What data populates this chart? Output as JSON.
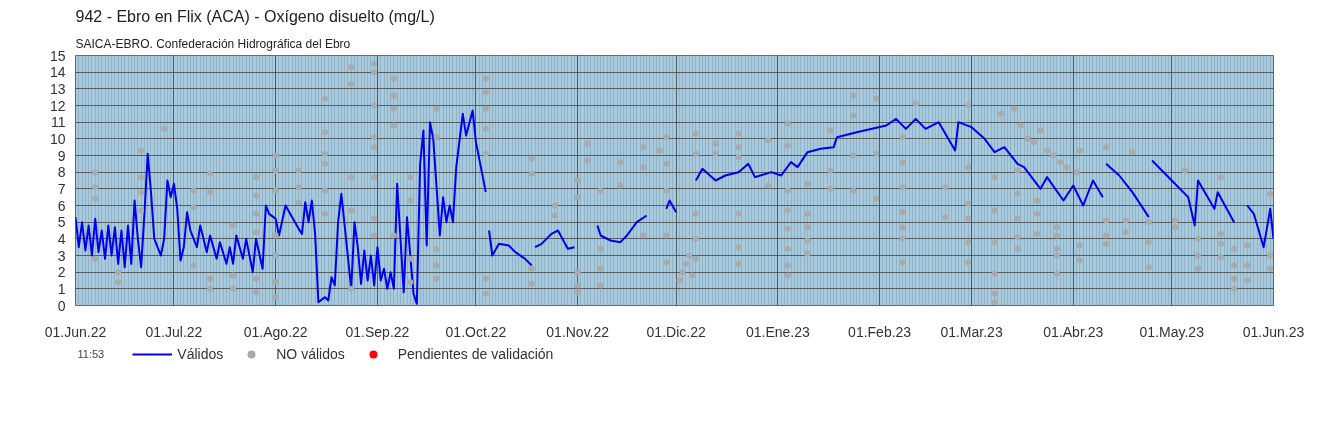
{
  "chart_data": {
    "type": "line",
    "title": "942 - Ebro en Flix (ACA) - Oxígeno disuelto (mg/L)",
    "subtitle": "SAICA-EBRO. Confederación Hidrográfica del Ebro",
    "annotations": [
      "11:53"
    ],
    "xlim": [
      "2022-06-01",
      "2023-06-01"
    ],
    "xticks": [
      {
        "value": "2022-06-01",
        "label": "01.Jun.22"
      },
      {
        "value": "2022-07-01",
        "label": "01.Jul.22"
      },
      {
        "value": "2022-08-01",
        "label": "01.Ago.22"
      },
      {
        "value": "2022-09-01",
        "label": "01.Sep.22"
      },
      {
        "value": "2022-10-01",
        "label": "01.Oct.22"
      },
      {
        "value": "2022-11-01",
        "label": "01.Nov.22"
      },
      {
        "value": "2022-12-01",
        "label": "01.Dic.22"
      },
      {
        "value": "2023-01-01",
        "label": "01.Ene.23"
      },
      {
        "value": "2023-02-01",
        "label": "01.Feb.23"
      },
      {
        "value": "2023-03-01",
        "label": "01.Mar.23"
      },
      {
        "value": "2023-04-01",
        "label": "01.Abr.23"
      },
      {
        "value": "2023-05-01",
        "label": "01.May.23"
      },
      {
        "value": "2023-06-01",
        "label": "01.Jun.23"
      }
    ],
    "ylim": [
      0,
      15
    ],
    "yticks": [
      0,
      1,
      2,
      3,
      4,
      5,
      6,
      7,
      8,
      9,
      10,
      11,
      12,
      13,
      14,
      15
    ],
    "grid": true,
    "legend": "bottom",
    "line_style": "solid",
    "series": [
      {
        "name": "Válidos",
        "color": "#0000ee",
        "x": [
          "2022-06-01",
          "2022-06-02",
          "2022-06-03",
          "2022-06-04",
          "2022-06-05",
          "2022-06-06",
          "2022-06-07",
          "2022-06-08",
          "2022-06-09",
          "2022-06-10",
          "2022-06-11",
          "2022-06-12",
          "2022-06-13",
          "2022-06-14",
          "2022-06-15",
          "2022-06-16",
          "2022-06-17",
          "2022-06-18",
          "2022-06-19",
          "2022-06-20",
          "2022-06-21",
          "2022-06-22",
          "2022-06-23",
          "2022-06-24",
          "2022-06-25",
          "2022-06-26",
          "2022-06-27",
          "2022-06-28",
          "2022-06-29",
          "2022-06-30",
          "2022-07-01",
          "2022-07-02",
          "2022-07-03",
          "2022-07-04",
          "2022-07-05",
          "2022-07-06",
          "2022-07-08",
          "2022-07-09",
          "2022-07-11",
          "2022-07-12",
          "2022-07-14",
          "2022-07-15",
          "2022-07-17",
          "2022-07-18",
          "2022-07-19",
          "2022-07-20",
          "2022-07-22",
          "2022-07-23",
          "2022-07-25",
          "2022-07-26",
          "2022-07-28",
          "2022-07-29",
          "2022-07-30",
          "2022-08-01",
          "2022-08-02",
          "2022-08-04",
          "2022-08-06",
          "2022-08-08",
          "2022-08-09",
          "2022-08-10",
          "2022-08-11",
          "2022-08-12",
          "2022-08-13",
          "2022-08-14",
          "2022-08-16",
          "2022-08-17",
          "2022-08-18",
          "2022-08-19",
          "2022-08-20",
          "2022-08-21",
          "2022-08-22",
          "2022-08-24",
          "2022-08-25",
          "2022-08-26",
          "2022-08-27",
          "2022-08-28",
          "2022-08-29",
          "2022-08-30",
          "2022-08-31",
          "2022-09-01",
          "2022-09-02",
          "2022-09-03",
          "2022-09-04",
          "2022-09-05",
          "2022-09-06",
          "2022-09-07",
          "2022-09-09",
          "2022-09-10",
          "2022-09-12",
          "2022-09-13",
          "2022-09-14",
          "2022-09-15",
          "2022-09-16",
          "2022-09-17",
          "2022-09-18",
          "2022-09-20",
          "2022-09-21",
          "2022-09-22",
          "2022-09-23",
          "2022-09-24",
          "2022-09-25",
          "2022-09-27",
          "2022-09-28",
          "2022-09-30",
          "2022-10-01",
          "2022-10-04",
          "2022-10-04T12:00",
          "2022-10-05",
          "2022-10-06",
          "2022-10-08",
          "2022-10-11",
          "2022-10-13",
          "2022-10-16",
          "2022-10-18",
          "2022-10-18T12:00",
          "2022-10-19",
          "2022-10-21",
          "2022-10-24",
          "2022-10-26",
          "2022-10-29",
          "2022-10-31",
          "2022-11-03",
          "2022-11-07",
          "2022-11-08",
          "2022-11-11",
          "2022-11-14",
          "2022-11-16",
          "2022-11-19",
          "2022-11-22",
          "2022-11-25",
          "2022-11-28",
          "2022-11-29",
          "2022-12-01",
          "2022-12-04",
          "2022-12-07",
          "2022-12-09",
          "2022-12-13",
          "2022-12-16",
          "2022-12-20",
          "2022-12-23",
          "2022-12-25",
          "2022-12-30",
          "2023-01-02",
          "2023-01-05",
          "2023-01-07",
          "2023-01-10",
          "2023-01-14",
          "2023-01-18",
          "2023-01-19",
          "2023-01-25",
          "2023-02-03",
          "2023-02-06",
          "2023-02-09",
          "2023-02-12",
          "2023-02-15",
          "2023-02-19",
          "2023-02-24",
          "2023-02-25",
          "2023-03-01",
          "2023-03-05",
          "2023-03-08",
          "2023-03-11",
          "2023-03-15",
          "2023-03-17",
          "2023-03-22",
          "2023-03-24",
          "2023-03-29",
          "2023-04-01",
          "2023-04-04",
          "2023-04-07",
          "2023-04-10",
          "2023-04-10T12:00",
          "2023-04-11",
          "2023-04-15",
          "2023-04-19",
          "2023-04-24",
          "2023-04-24T12:00",
          "2023-04-25",
          "2023-05-01",
          "2023-05-06",
          "2023-05-08",
          "2023-05-09",
          "2023-05-14",
          "2023-05-15",
          "2023-05-20",
          "2023-05-22",
          "2023-05-24",
          "2023-05-26",
          "2023-05-29",
          "2023-05-31",
          "2023-06-01"
        ],
        "values": [
          5.3,
          3.5,
          5.0,
          3.3,
          4.8,
          3.0,
          5.2,
          3.2,
          4.5,
          2.8,
          4.8,
          3.0,
          4.7,
          2.5,
          4.5,
          2.3,
          4.8,
          2.5,
          6.3,
          4.0,
          2.3,
          5.5,
          9.1,
          6.8,
          4.0,
          3.5,
          3.0,
          4.0,
          7.5,
          6.5,
          7.3,
          5.8,
          2.7,
          3.5,
          5.6,
          4.5,
          3.5,
          4.8,
          3.2,
          4.2,
          2.8,
          3.8,
          2.5,
          3.5,
          2.5,
          4.2,
          2.8,
          4.0,
          2.0,
          4.0,
          2.2,
          6.0,
          5.5,
          5.2,
          4.2,
          6.0,
          5.3,
          4.6,
          4.3,
          6.2,
          5.0,
          6.3,
          4.3,
          0.2,
          0.5,
          0.3,
          1.7,
          1.2,
          5.0,
          6.7,
          4.8,
          1.0,
          5.0,
          3.5,
          1.3,
          3.3,
          1.5,
          3.0,
          1.2,
          3.5,
          1.5,
          2.2,
          1.0,
          2.0,
          1.0,
          7.3,
          0.8,
          5.3,
          0.7,
          0.1,
          8.5,
          10.5,
          3.6,
          11.0,
          10.0,
          4.2,
          6.5,
          5.0,
          6.0,
          5.0,
          8.3,
          11.5,
          10.2,
          11.7,
          9.8,
          6.8,
          null,
          4.5,
          3.0,
          3.7,
          3.6,
          3.2,
          2.8,
          2.4,
          null,
          3.5,
          3.7,
          4.3,
          4.5,
          3.4,
          3.5,
          null,
          4.8,
          4.2,
          3.9,
          3.8,
          4.2,
          5.0,
          5.4,
          null,
          5.8,
          6.3,
          5.6,
          null,
          7.5,
          8.2,
          7.5,
          7.8,
          8.0,
          8.5,
          7.7,
          8.0,
          7.8,
          8.6,
          8.3,
          9.2,
          9.4,
          9.5,
          10.1,
          10.4,
          10.8,
          11.2,
          10.6,
          11.2,
          10.6,
          11.0,
          9.3,
          11.0,
          10.7,
          10.0,
          9.2,
          9.5,
          8.5,
          8.3,
          7.0,
          7.7,
          6.3,
          7.2,
          6.0,
          7.5,
          6.5,
          null,
          8.5,
          7.8,
          6.8,
          5.3,
          null,
          8.7,
          7.5,
          6.5,
          4.8,
          7.5,
          5.8,
          6.8,
          5.0,
          null,
          6.0,
          5.5,
          3.5,
          5.8,
          4.0
        ]
      },
      {
        "name": "NO válidos",
        "type": "scatter",
        "marker": "circle",
        "color": "#aaaaaa",
        "x": [
          "2022-06-07",
          "2022-06-07",
          "2022-06-07",
          "2022-06-07",
          "2022-06-14",
          "2022-06-14",
          "2022-06-21",
          "2022-06-21",
          "2022-06-21",
          "2022-06-21",
          "2022-06-28",
          "2022-07-07",
          "2022-07-07",
          "2022-07-07",
          "2022-07-12",
          "2022-07-12",
          "2022-07-12",
          "2022-07-12",
          "2022-07-19",
          "2022-07-19",
          "2022-07-19",
          "2022-07-26",
          "2022-07-26",
          "2022-07-26",
          "2022-07-26",
          "2022-07-26",
          "2022-07-26",
          "2022-08-01",
          "2022-08-01",
          "2022-08-01",
          "2022-08-01",
          "2022-08-01",
          "2022-08-01",
          "2022-08-01",
          "2022-08-08",
          "2022-08-08",
          "2022-08-08",
          "2022-08-16",
          "2022-08-16",
          "2022-08-16",
          "2022-08-16",
          "2022-08-16",
          "2022-08-16",
          "2022-08-24",
          "2022-08-24",
          "2022-08-24",
          "2022-08-24",
          "2022-08-24",
          "2022-08-31",
          "2022-08-31",
          "2022-08-31",
          "2022-08-31",
          "2022-08-31",
          "2022-08-31",
          "2022-08-31",
          "2022-08-31",
          "2022-09-06",
          "2022-09-06",
          "2022-09-06",
          "2022-09-06",
          "2022-09-06",
          "2022-09-11",
          "2022-09-11",
          "2022-09-11",
          "2022-09-11",
          "2022-09-19",
          "2022-09-19",
          "2022-09-19",
          "2022-09-19",
          "2022-09-19",
          "2022-10-04",
          "2022-10-04",
          "2022-10-04",
          "2022-10-04",
          "2022-10-04",
          "2022-10-04",
          "2022-10-04",
          "2022-10-18",
          "2022-10-18",
          "2022-10-18",
          "2022-10-18",
          "2022-10-25",
          "2022-10-25",
          "2022-11-01",
          "2022-11-01",
          "2022-11-01",
          "2022-11-01",
          "2022-11-01",
          "2022-11-04",
          "2022-11-04",
          "2022-11-08",
          "2022-11-08",
          "2022-11-08",
          "2022-11-08",
          "2022-11-14",
          "2022-11-14",
          "2022-11-21",
          "2022-11-21",
          "2022-11-21",
          "2022-11-26",
          "2022-11-28",
          "2022-11-28",
          "2022-11-28",
          "2022-11-28",
          "2022-11-28",
          "2022-12-02",
          "2022-12-03",
          "2022-12-04",
          "2022-12-05",
          "2022-12-06",
          "2022-12-07",
          "2022-12-07",
          "2022-12-07",
          "2022-12-07",
          "2022-12-07",
          "2022-12-13",
          "2022-12-13",
          "2022-12-20",
          "2022-12-20",
          "2022-12-20",
          "2022-12-20",
          "2022-12-20",
          "2022-12-20",
          "2022-12-29",
          "2022-12-29",
          "2023-01-04",
          "2023-01-04",
          "2023-01-04",
          "2023-01-04",
          "2023-01-04",
          "2023-01-04",
          "2023-01-04",
          "2023-01-04",
          "2023-01-10",
          "2023-01-10",
          "2023-01-10",
          "2023-01-10",
          "2023-01-10",
          "2023-01-17",
          "2023-01-17",
          "2023-01-17",
          "2023-01-24",
          "2023-01-24",
          "2023-01-24",
          "2023-01-24",
          "2023-01-31",
          "2023-01-31",
          "2023-01-31",
          "2023-02-12",
          "2023-02-08",
          "2023-02-08",
          "2023-02-08",
          "2023-02-08",
          "2023-02-08",
          "2023-02-08",
          "2023-02-08",
          "2023-02-21",
          "2023-02-21",
          "2023-02-28",
          "2023-02-28",
          "2023-02-28",
          "2023-02-28",
          "2023-02-28",
          "2023-02-28",
          "2023-03-08",
          "2023-03-08",
          "2023-03-08",
          "2023-03-08",
          "2023-03-08",
          "2023-03-08",
          "2023-03-10",
          "2023-03-14",
          "2023-03-16",
          "2023-03-18",
          "2023-03-20",
          "2023-03-22",
          "2023-03-24",
          "2023-03-26",
          "2023-03-28",
          "2023-03-30",
          "2023-04-02",
          "2023-03-15",
          "2023-03-15",
          "2023-03-15",
          "2023-03-15",
          "2023-03-15",
          "2023-03-21",
          "2023-03-21",
          "2023-03-21",
          "2023-03-27",
          "2023-03-27",
          "2023-03-27",
          "2023-03-27",
          "2023-03-27",
          "2023-04-03",
          "2023-04-03",
          "2023-04-03",
          "2023-04-11",
          "2023-04-11",
          "2023-04-11",
          "2023-04-11",
          "2023-04-17",
          "2023-04-17",
          "2023-04-19",
          "2023-04-24",
          "2023-04-24",
          "2023-04-24",
          "2023-05-02",
          "2023-05-02",
          "2023-05-05",
          "2023-05-09",
          "2023-05-09",
          "2023-05-09",
          "2023-05-16",
          "2023-05-16",
          "2023-05-16",
          "2023-05-16",
          "2023-05-20",
          "2023-05-20",
          "2023-05-20",
          "2023-05-20",
          "2023-05-24",
          "2023-05-24",
          "2023-05-24",
          "2023-05-31",
          "2023-05-31",
          "2023-05-31"
        ],
        "values": [
          8.0,
          7.1,
          6.4,
          2.8,
          2.0,
          1.4,
          9.3,
          7.7,
          6.8,
          5.7,
          10.6,
          6.9,
          5.9,
          2.4,
          7.9,
          6.8,
          1.6,
          1.0,
          4.8,
          1.8,
          1.0,
          7.7,
          6.6,
          5.5,
          4.4,
          1.6,
          0.8,
          9.0,
          8.1,
          6.9,
          4.2,
          3.0,
          1.4,
          0.5,
          8.1,
          7.1,
          6.2,
          12.4,
          10.4,
          9.1,
          8.5,
          6.9,
          5.5,
          14.3,
          13.3,
          7.7,
          5.7,
          1.0,
          14.5,
          14.0,
          12.0,
          10.1,
          9.5,
          7.7,
          5.2,
          4.2,
          13.6,
          12.6,
          11.8,
          10.8,
          4.2,
          7.7,
          6.3,
          2.8,
          1.4,
          11.8,
          10.1,
          3.4,
          2.4,
          1.6,
          13.6,
          12.8,
          11.8,
          10.6,
          9.1,
          1.6,
          0.7,
          8.8,
          7.9,
          2.2,
          1.3,
          6.0,
          5.4,
          7.5,
          6.5,
          2.0,
          1.2,
          0.8,
          8.7,
          9.7,
          6.9,
          3.4,
          2.2,
          1.2,
          8.6,
          7.2,
          9.5,
          8.3,
          4.2,
          9.3,
          10.1,
          8.5,
          6.9,
          4.2,
          2.6,
          1.5,
          2.0,
          2.5,
          3.0,
          1.8,
          2.8,
          4.0,
          10.3,
          9.1,
          5.5,
          9.7,
          9.1,
          10.3,
          9.5,
          8.9,
          5.5,
          3.5,
          2.5,
          9.9,
          7.2,
          10.9,
          9.6,
          6.9,
          5.7,
          4.6,
          3.4,
          2.4,
          1.8,
          7.3,
          5.5,
          4.7,
          3.9,
          3.1,
          10.5,
          8.1,
          7.0,
          12.6,
          11.4,
          9.0,
          6.9,
          12.4,
          9.1,
          6.4,
          12.1,
          10.1,
          8.6,
          7.1,
          5.6,
          4.7,
          4.0,
          2.6,
          7.1,
          5.3,
          12.0,
          8.3,
          6.1,
          5.2,
          3.8,
          2.6,
          7.7,
          5.7,
          3.8,
          1.9,
          0.7,
          0.2,
          11.5,
          11.8,
          10.8,
          10.0,
          9.8,
          10.5,
          9.3,
          9.0,
          8.6,
          8.3,
          8.0,
          8.1,
          6.7,
          5.2,
          4.1,
          3.4,
          6.3,
          5.5,
          4.3,
          4.7,
          4.2,
          3.4,
          3.0,
          1.9,
          9.3,
          3.6,
          2.7,
          9.5,
          5.1,
          4.2,
          3.7,
          5.1,
          4.4,
          9.2,
          5.0,
          3.8,
          2.3,
          5.1,
          4.7,
          8.1,
          4.0,
          3.0,
          2.2,
          7.7,
          4.3,
          3.7,
          2.9,
          3.4,
          2.4,
          1.6,
          1.0,
          3.6,
          2.4,
          1.5,
          6.7,
          3.0,
          2.2
        ]
      },
      {
        "name": "Pendientes de validación",
        "type": "scatter",
        "marker": "circle",
        "color": "#ff0000"
      }
    ]
  }
}
